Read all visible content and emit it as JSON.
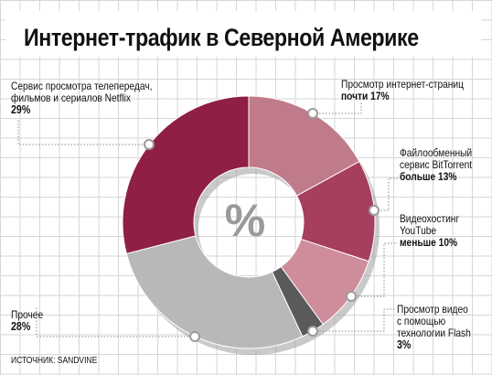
{
  "title": "Интернет-трафик в Северной Америке",
  "center_symbol": "%",
  "source": "ИСТОЧНИК: SANDVINE",
  "colors": {
    "netflix": "#8f1f44",
    "web": "#c07b8a",
    "bittorrent": "#a63e5d",
    "youtube": "#cf8c9b",
    "flash": "#5a5a5a",
    "other": "#b8b8b8",
    "leader": "#8a8a8a"
  },
  "chart_data": {
    "type": "pie",
    "title": "Интернет-трафик в Северной Америке",
    "slices": [
      {
        "key": "web",
        "label": "Просмотр интернет-страниц",
        "qualifier": "почти",
        "value": 17,
        "value_text": "17%"
      },
      {
        "key": "bittorrent",
        "label": "Файлообменный сервис BitTorrent",
        "qualifier": "больше",
        "value": 13,
        "value_text": "13%"
      },
      {
        "key": "youtube",
        "label": "Видеохостинг YouTube",
        "qualifier": "меньше",
        "value": 10,
        "value_text": "10%"
      },
      {
        "key": "flash",
        "label": "Просмотр видео с помощью технологии Flash",
        "qualifier": "",
        "value": 3,
        "value_text": "3%"
      },
      {
        "key": "other",
        "label": "Прочее",
        "qualifier": "",
        "value": 28,
        "value_text": "28%"
      },
      {
        "key": "netflix",
        "label": "Сервис просмотра телепередач, фильмов и сериалов Netflix",
        "qualifier": "",
        "value": 29,
        "value_text": "29%"
      }
    ]
  },
  "labels": {
    "netflix": {
      "line1": "Сервис просмотра телепередач,",
      "line2": "фильмов и сериалов Netflix",
      "pct": "29%"
    },
    "web": {
      "line1": "Просмотр интернет-страниц",
      "qualifier": "почти",
      "pct": "17%"
    },
    "bittorrent": {
      "line1": "Файлообменный",
      "line2": "сервис BitTorrent",
      "qualifier": "больше",
      "pct": "13%"
    },
    "youtube": {
      "line1": "Видеохостинг",
      "line2": "YouTube",
      "qualifier": "меньше",
      "pct": "10%"
    },
    "flash": {
      "line1": "Просмотр видео",
      "line2": "с помощью",
      "line3": "технологии Flash",
      "pct": "3%"
    },
    "other": {
      "line1": "Прочее",
      "pct": "28%"
    }
  }
}
